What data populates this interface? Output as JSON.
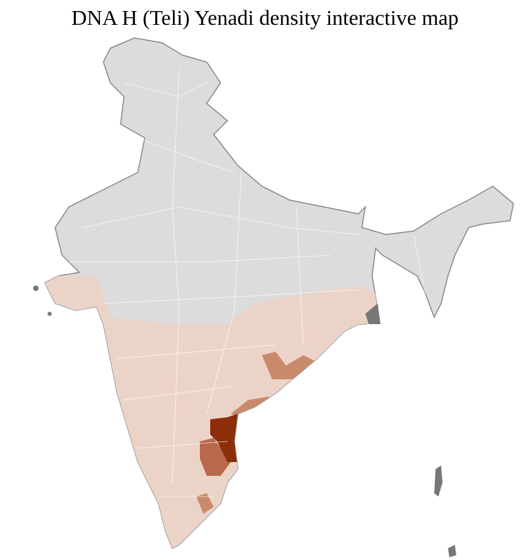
{
  "title": "DNA H (Teli) Yenadi density interactive map"
}
